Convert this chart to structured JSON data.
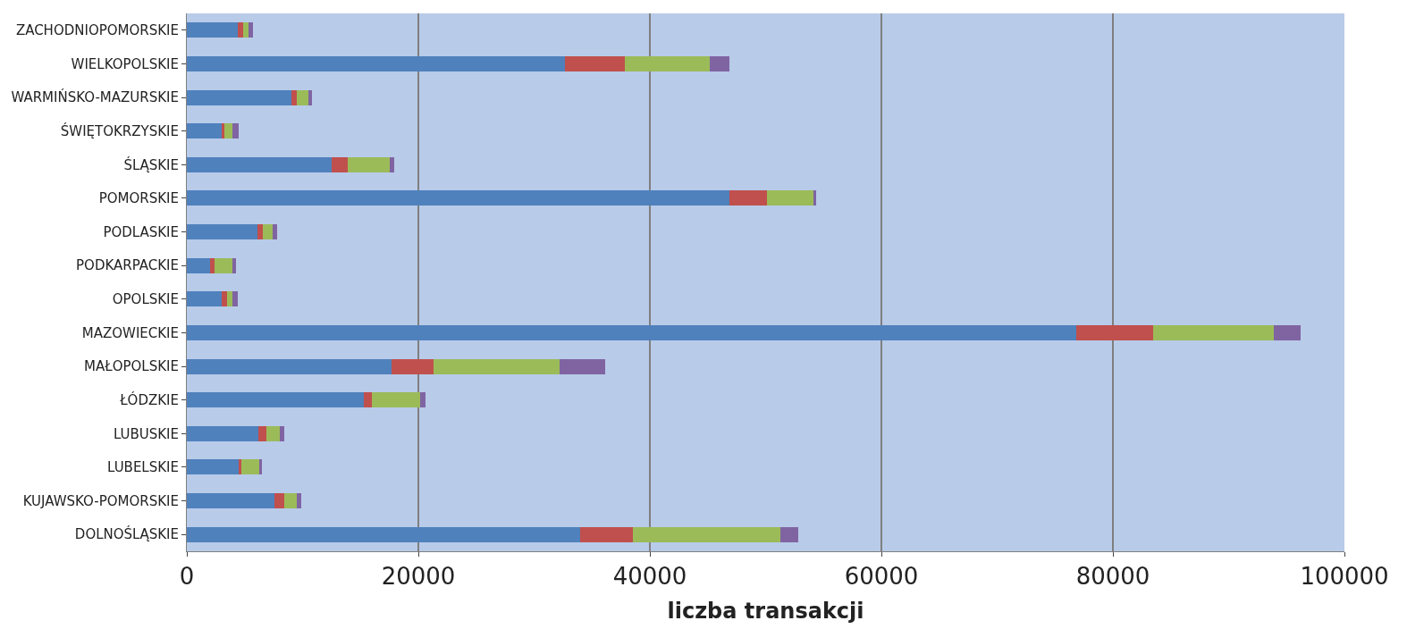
{
  "chart_data": {
    "type": "bar",
    "orientation": "horizontal",
    "stacked": true,
    "xlabel": "liczba transakcji",
    "categories": [
      "ZACHODNIOPOMORSKIE",
      "WIELKOPOLSKIE",
      "WARMIŃSKO-MAZURSKIE",
      "ŚWIĘTOKRZYSKIE",
      "ŚLĄSKIE",
      "POMORSKIE",
      "PODLASKIE",
      "PODKARPACKIE",
      "OPOLSKIE",
      "MAZOWIECKIE",
      "MAŁOPOLSKIE",
      "ŁÓDZKIE",
      "LUBUSKIE",
      "LUBELSKIE",
      "KUJAWSKO-POMORSKIE",
      "DOLNOŚLĄSKIE"
    ],
    "series": [
      {
        "color": "#4f81bd",
        "values": [
          4400,
          32700,
          9000,
          3000,
          12500,
          46900,
          6100,
          2000,
          3000,
          76800,
          17700,
          15300,
          6200,
          4450,
          7600,
          34000
        ]
      },
      {
        "color": "#c0504d",
        "values": [
          500,
          5100,
          500,
          250,
          1400,
          3200,
          450,
          400,
          450,
          6700,
          3600,
          650,
          650,
          250,
          800,
          4500
        ]
      },
      {
        "color": "#9bbb59",
        "values": [
          450,
          7400,
          1000,
          700,
          3600,
          4000,
          900,
          1550,
          500,
          10400,
          10900,
          4200,
          1150,
          1550,
          1100,
          12800
        ]
      },
      {
        "color": "#8064a2",
        "values": [
          350,
          1700,
          300,
          500,
          450,
          300,
          350,
          300,
          450,
          2300,
          3900,
          450,
          450,
          250,
          350,
          1550
        ]
      }
    ],
    "xlim": [
      0,
      100000
    ],
    "xticks": [
      0,
      20000,
      40000,
      60000,
      80000,
      100000
    ],
    "grid": "x"
  }
}
